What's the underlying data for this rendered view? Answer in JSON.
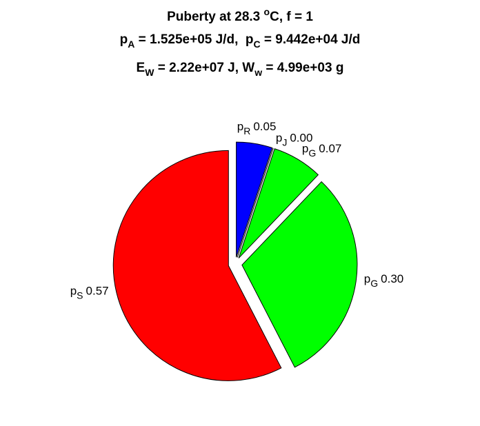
{
  "chart_data": {
    "type": "pie",
    "title": [
      [
        {
          "text": "Puberty at 28.3 "
        },
        {
          "sup": "o"
        },
        {
          "text": "C, f = 1"
        }
      ],
      [
        {
          "text": "p"
        },
        {
          "sub": "A"
        },
        {
          "text": " = 1.525e+05 J/d,  p"
        },
        {
          "sub": "C"
        },
        {
          "text": " = 9.442e+04 J/d"
        }
      ],
      [
        {
          "text": "E"
        },
        {
          "sub": "W"
        },
        {
          "text": " = 2.22e+07 J, W"
        },
        {
          "sub": "w"
        },
        {
          "text": " = 4.99e+03 g"
        }
      ]
    ],
    "categories": [
      {
        "main": "p",
        "sub": "R"
      },
      {
        "main": "p",
        "sub": "J"
      },
      {
        "main": "p",
        "sub": "G"
      },
      {
        "main": "p",
        "sub": "G"
      },
      {
        "main": "p",
        "sub": "S"
      }
    ],
    "values": [
      0.05,
      0.0,
      0.07,
      0.3,
      0.57
    ],
    "value_labels": [
      "0.05",
      "0.00",
      "0.07",
      "0.30",
      "0.57"
    ],
    "colors": [
      "#0000ff",
      "#ffffff",
      "#00ff00",
      "#00ff00",
      "#ff0000"
    ]
  }
}
